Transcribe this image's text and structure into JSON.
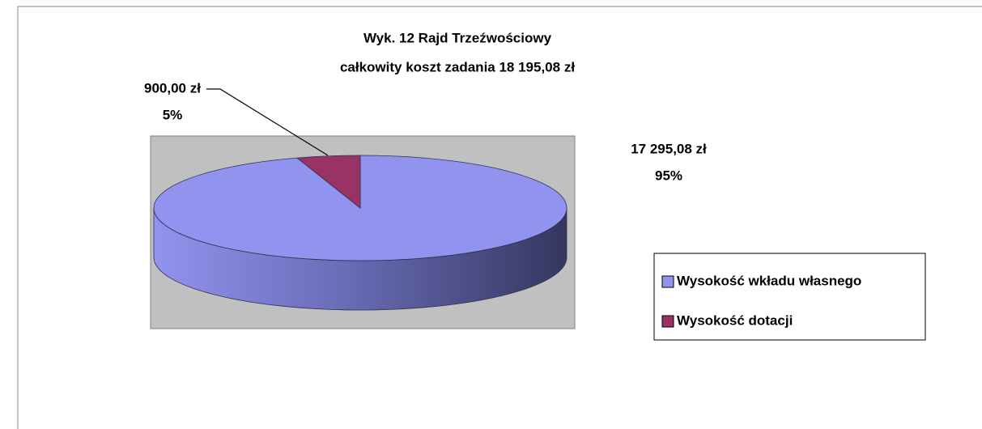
{
  "chart_data": {
    "type": "pie3d",
    "title": [
      "Wyk. 12  Rajd Trzeźwościowy",
      "całkowity koszt zadania 18 195,08 zł"
    ],
    "categories": [
      "Wysokość wkładu własnego",
      "Wysokość dotacji"
    ],
    "values": [
      17295.08,
      900
    ],
    "value_labels": [
      "17 295,08 zł",
      "900,00 zł"
    ],
    "percents": [
      95,
      5
    ],
    "percent_labels": [
      "95%",
      "5%"
    ],
    "colors": [
      "#9094ee",
      "#993366"
    ],
    "legend": "right"
  }
}
